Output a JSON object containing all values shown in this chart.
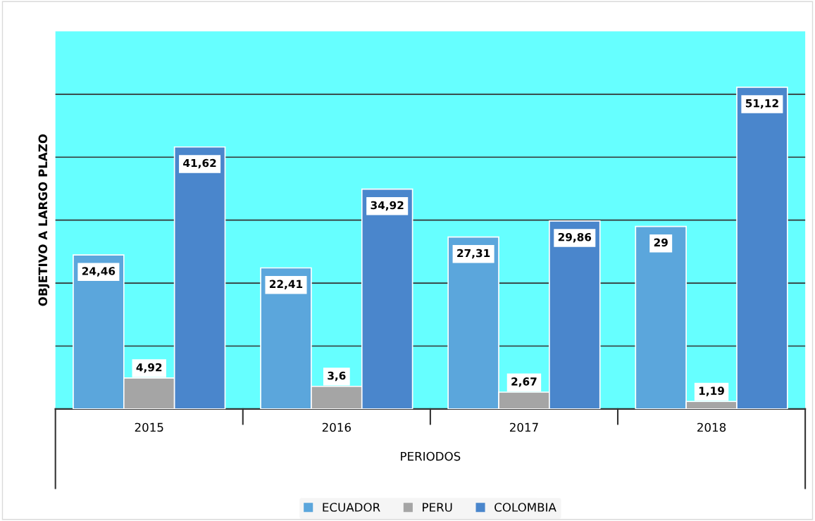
{
  "chart_data": {
    "type": "bar",
    "xlabel": "PERIODOS",
    "ylabel": "OBJETIVO A LARGO PLAZO",
    "categories": [
      "2015",
      "2016",
      "2017",
      "2018"
    ],
    "series": [
      {
        "name": "ECUADOR",
        "color": "#5ba6dc",
        "values": [
          24.46,
          22.41,
          27.31,
          29
        ],
        "value_labels": [
          "24,46",
          "22,41",
          "27,31",
          "29"
        ]
      },
      {
        "name": "PERU",
        "color": "#a5a5a5",
        "values": [
          4.92,
          3.6,
          2.67,
          1.19
        ],
        "value_labels": [
          "4,92",
          "3,6",
          "2,67",
          "1,19"
        ]
      },
      {
        "name": "COLOMBIA",
        "color": "#4a86cc",
        "values": [
          41.62,
          34.92,
          29.86,
          51.12
        ],
        "value_labels": [
          "41,62",
          "34,92",
          "29,86",
          "51,12"
        ]
      }
    ],
    "ylim": [
      0,
      60
    ],
    "yticks": [
      {
        "value": 10,
        "label": null
      },
      {
        "value": 20,
        "label": null
      },
      {
        "value": 30,
        "label": null
      },
      {
        "value": 40,
        "label": null
      },
      {
        "value": 50,
        "label": null
      }
    ],
    "tick_labels": "x",
    "grid": "y",
    "legend": "bottom"
  }
}
